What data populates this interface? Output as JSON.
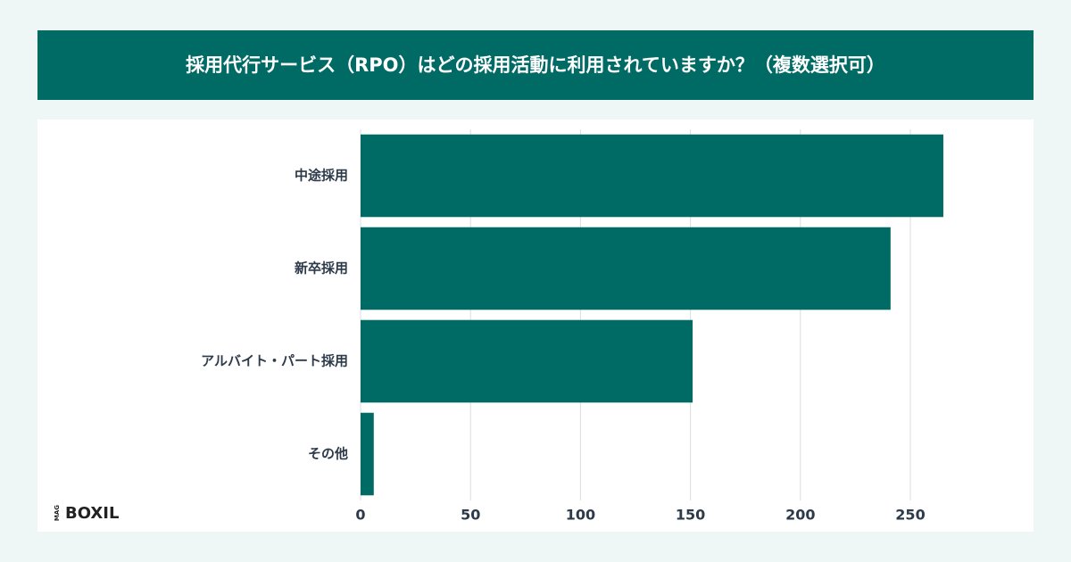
{
  "chart_data": {
    "type": "hbar",
    "title": "採用代行サービス（RPO）はどの採用活動に利用されていますか？（複数選択可）",
    "categories": [
      "中途採用",
      "新卒採用",
      "アルバイト・パート採用",
      "その他"
    ],
    "values": [
      265,
      241,
      151,
      6
    ],
    "color": "#006a64",
    "xlim": [
      0,
      300
    ],
    "xticks": [
      0,
      50,
      100,
      150,
      200,
      250
    ],
    "grid": true
  },
  "logo": {
    "badge": "MAG",
    "name": "BOXIL"
  }
}
